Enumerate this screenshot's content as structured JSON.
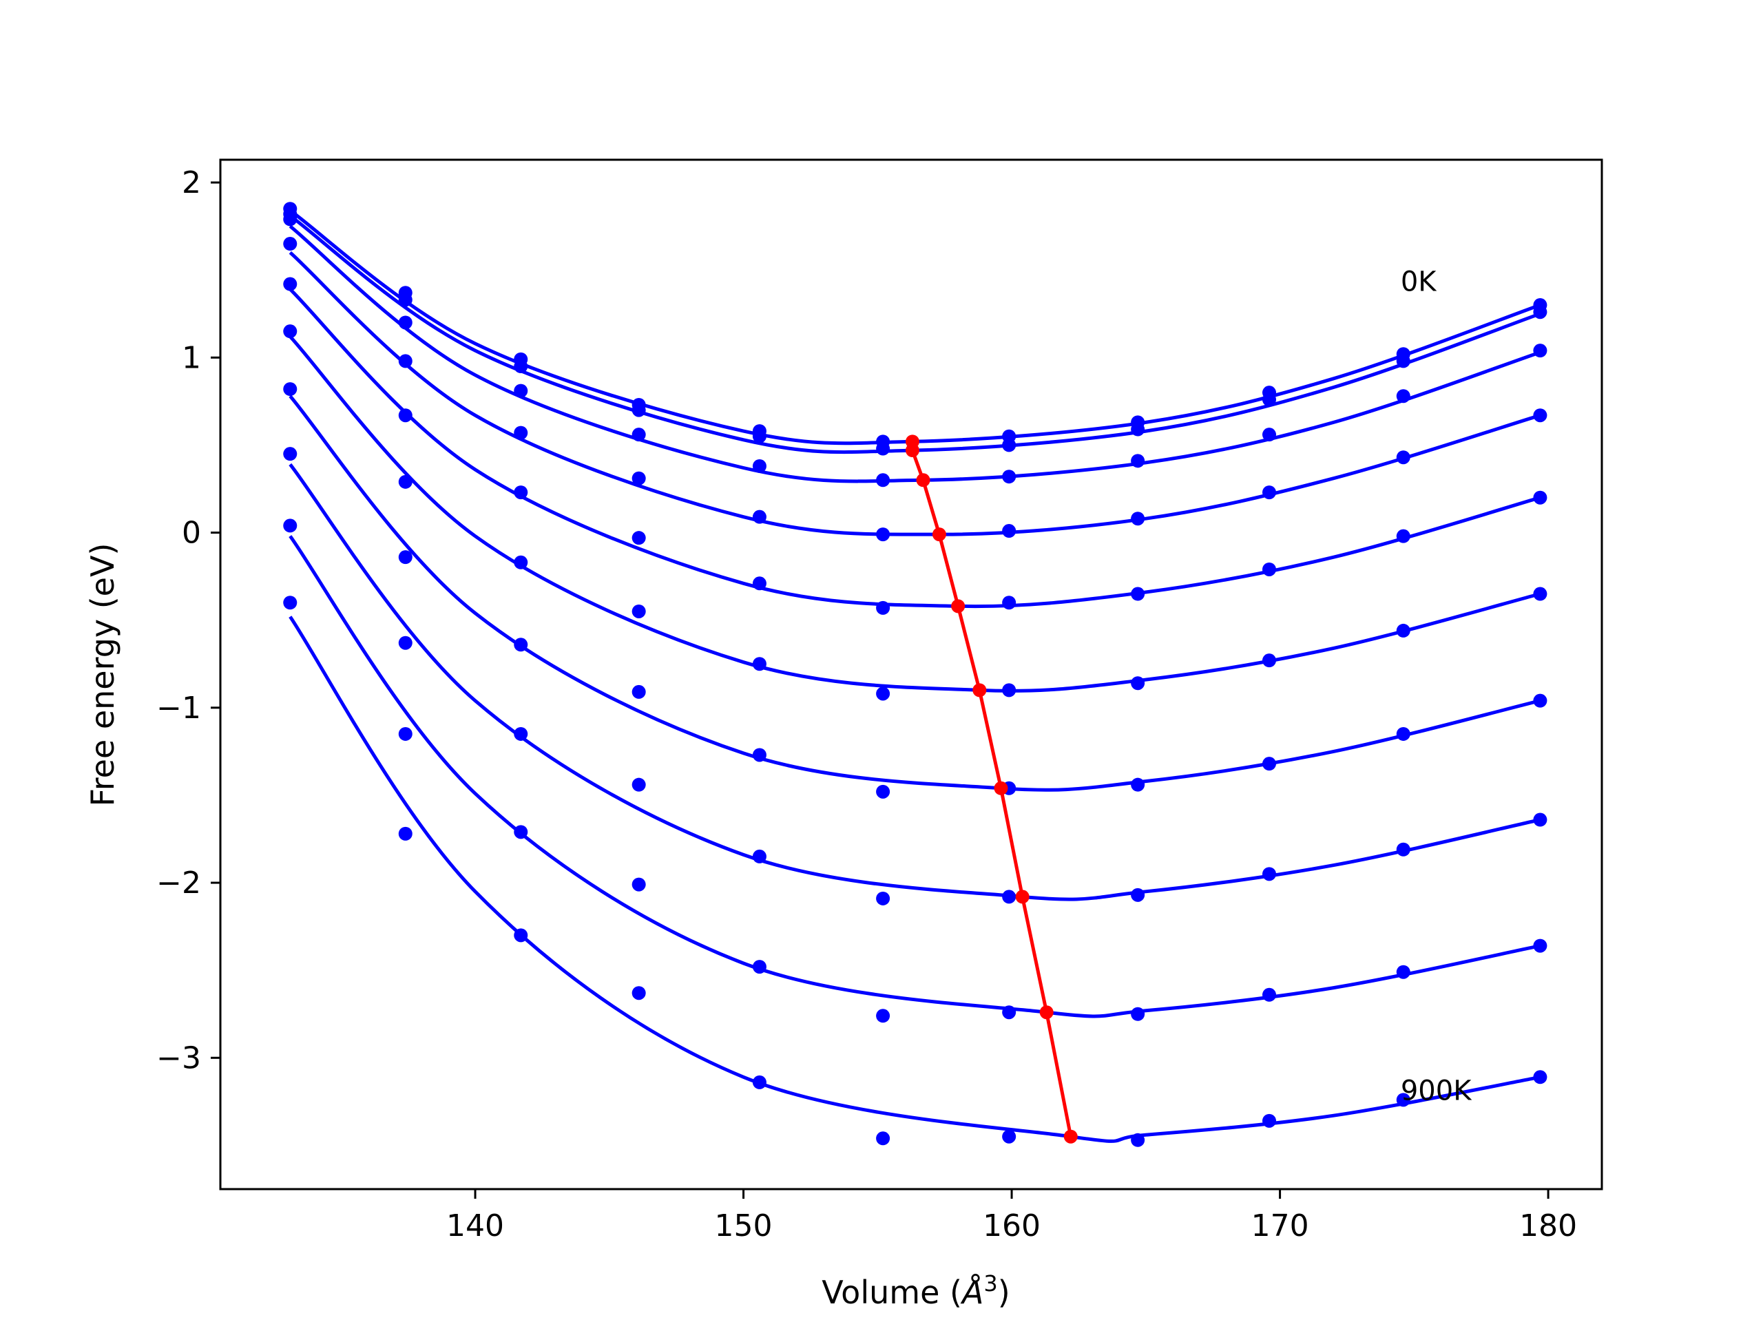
{
  "chart_data": {
    "type": "scatter",
    "xlabel": "Volume (",
    "xlabel_symbol": "Å",
    "xlabel_sup": "3",
    "xlabel_close": ")",
    "ylabel": "Free energy (eV)",
    "xlim": [
      130.5,
      182
    ],
    "ylim": [
      -3.75,
      2.13
    ],
    "xticks": [
      140,
      150,
      160,
      170,
      180
    ],
    "xtick_labels": [
      "140",
      "150",
      "160",
      "170",
      "180"
    ],
    "yticks": [
      -3,
      -2,
      -1,
      0,
      1,
      2
    ],
    "ytick_labels": [
      "−3",
      "−2",
      "−1",
      "0",
      "1",
      "2"
    ],
    "grid": false,
    "annotations": [
      {
        "text": "0K",
        "x": 174.5,
        "y": 1.38
      },
      {
        "text": "900K",
        "x": 174.5,
        "y": -3.24
      }
    ],
    "x": [
      133.1,
      137.4,
      141.7,
      146.1,
      150.6,
      155.2,
      159.9,
      164.7,
      169.6,
      174.6,
      179.7
    ],
    "series": [
      {
        "values": [
          1.85,
          1.37,
          0.99,
          0.73,
          0.58,
          0.52,
          0.55,
          0.63,
          0.8,
          1.02,
          1.3
        ],
        "min": {
          "x": 156.3,
          "y": 0.52
        }
      },
      {
        "values": [
          1.82,
          1.33,
          0.95,
          0.7,
          0.55,
          0.48,
          0.5,
          0.59,
          0.76,
          0.98,
          1.26
        ],
        "min": {
          "x": 156.3,
          "y": 0.47
        }
      },
      {
        "values": [
          1.79,
          1.2,
          0.81,
          0.56,
          0.38,
          0.3,
          0.32,
          0.41,
          0.56,
          0.78,
          1.04
        ],
        "min": {
          "x": 156.7,
          "y": 0.3
        }
      },
      {
        "values": [
          1.65,
          0.98,
          0.57,
          0.31,
          0.09,
          -0.01,
          0.01,
          0.08,
          0.23,
          0.43,
          0.67
        ],
        "min": {
          "x": 157.3,
          "y": -0.01
        }
      },
      {
        "values": [
          1.42,
          0.67,
          0.23,
          -0.03,
          -0.29,
          -0.43,
          -0.4,
          -0.35,
          -0.21,
          -0.02,
          0.2
        ],
        "min": {
          "x": 158.0,
          "y": -0.42
        }
      },
      {
        "values": [
          1.15,
          0.29,
          -0.17,
          -0.45,
          -0.75,
          -0.92,
          -0.9,
          -0.86,
          -0.73,
          -0.56,
          -0.35
        ],
        "min": {
          "x": 158.8,
          "y": -0.9
        }
      },
      {
        "values": [
          0.82,
          -0.14,
          -0.64,
          -0.91,
          -1.27,
          -1.48,
          -1.46,
          -1.44,
          -1.32,
          -1.15,
          -0.96
        ],
        "min": {
          "x": 159.6,
          "y": -1.46
        }
      },
      {
        "values": [
          0.45,
          -0.63,
          -1.15,
          -1.44,
          -1.85,
          -2.09,
          -2.08,
          -2.07,
          -1.95,
          -1.81,
          -1.64
        ],
        "min": {
          "x": 160.4,
          "y": -2.08
        }
      },
      {
        "values": [
          0.04,
          -1.15,
          -1.71,
          -2.01,
          -2.48,
          -2.76,
          -2.74,
          -2.75,
          -2.64,
          -2.51,
          -2.36
        ],
        "min": {
          "x": 161.3,
          "y": -2.74
        }
      },
      {
        "values": [
          -0.4,
          -1.72,
          -2.3,
          -2.63,
          -3.14,
          -3.46,
          -3.45,
          -3.47,
          -3.36,
          -3.24,
          -3.11
        ],
        "min": {
          "x": 162.2,
          "y": -3.45
        }
      }
    ],
    "fit_curves": [
      {
        "x": [
          133.1,
          140,
          150,
          156.3,
          165,
          172,
          179.7
        ],
        "y": [
          1.84,
          1.08,
          0.58,
          0.52,
          0.63,
          0.88,
          1.3
        ]
      },
      {
        "x": [
          133.1,
          140,
          150,
          156.3,
          165,
          172,
          179.7
        ],
        "y": [
          1.81,
          1.04,
          0.53,
          0.47,
          0.58,
          0.83,
          1.25
        ]
      },
      {
        "x": [
          133.1,
          140,
          150,
          156.7,
          165,
          172,
          179.7
        ],
        "y": [
          1.75,
          0.9,
          0.37,
          0.3,
          0.4,
          0.63,
          1.03
        ]
      },
      {
        "x": [
          133.1,
          140,
          150,
          157.3,
          165,
          172,
          179.7
        ],
        "y": [
          1.6,
          0.67,
          0.09,
          -0.01,
          0.08,
          0.31,
          0.67
        ]
      },
      {
        "x": [
          133.1,
          140,
          150,
          158.0,
          165,
          172,
          179.7
        ],
        "y": [
          1.39,
          0.36,
          -0.29,
          -0.42,
          -0.34,
          -0.14,
          0.2
        ]
      },
      {
        "x": [
          133.1,
          140,
          150,
          158.8,
          165,
          172,
          179.7
        ],
        "y": [
          1.12,
          -0.02,
          -0.74,
          -0.9,
          -0.84,
          -0.66,
          -0.35
        ]
      },
      {
        "x": [
          133.1,
          140,
          150,
          159.6,
          165,
          172,
          179.7
        ],
        "y": [
          0.78,
          -0.46,
          -1.26,
          -1.46,
          -1.42,
          -1.25,
          -0.96
        ]
      },
      {
        "x": [
          133.1,
          140,
          150,
          160.4,
          165,
          172,
          179.7
        ],
        "y": [
          0.39,
          -0.96,
          -1.84,
          -2.08,
          -2.05,
          -1.9,
          -1.64
        ]
      },
      {
        "x": [
          133.1,
          140,
          150,
          161.3,
          165,
          172,
          179.7
        ],
        "y": [
          -0.02,
          -1.49,
          -2.46,
          -2.74,
          -2.73,
          -2.6,
          -2.36
        ]
      },
      {
        "x": [
          133.1,
          140,
          150,
          162.2,
          165,
          172,
          179.7
        ],
        "y": [
          -0.48,
          -2.05,
          -3.11,
          -3.45,
          -3.44,
          -3.33,
          -3.11
        ]
      }
    ],
    "colors": {
      "curves": "#0000ff",
      "minima": "#ff0000",
      "axes": "#000000"
    }
  }
}
